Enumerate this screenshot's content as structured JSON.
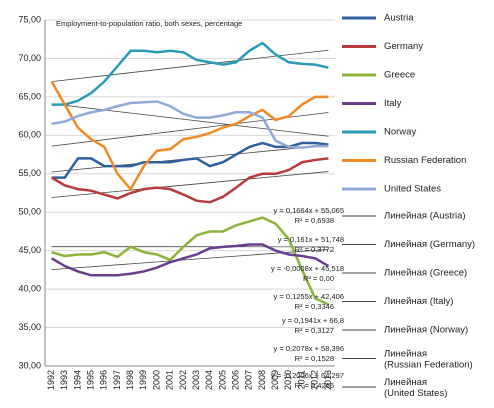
{
  "chart_data": {
    "type": "line",
    "title": "Employment-to-population ratio, both sexes, percentage",
    "categories": [
      "1992",
      "1993",
      "1994",
      "1995",
      "1996",
      "1997",
      "1998",
      "1999",
      "2000",
      "2001",
      "2002",
      "2003",
      "2004",
      "2005",
      "2006",
      "2007",
      "2008",
      "2009",
      "2010",
      "2011",
      "2012",
      "2013"
    ],
    "ylim": [
      30,
      75
    ],
    "yticks": [
      {
        "value": 30,
        "label": "30,00"
      },
      {
        "value": 35,
        "label": "35,00"
      },
      {
        "value": 40,
        "label": "40,00"
      },
      {
        "value": 45,
        "label": "45,00"
      },
      {
        "value": 50,
        "label": "50,00"
      },
      {
        "value": 55,
        "label": "55,00"
      },
      {
        "value": 60,
        "label": "60,00"
      },
      {
        "value": 65,
        "label": "65,00"
      },
      {
        "value": 70,
        "label": "70,00"
      },
      {
        "value": 75,
        "label": "75,00"
      }
    ],
    "grid": true,
    "series": [
      {
        "name": "Austria",
        "color": "#2e5f9e",
        "values": [
          54.5,
          54.5,
          57,
          57,
          56,
          56,
          56,
          56.5,
          56.5,
          56.5,
          56.8,
          57,
          56,
          56.5,
          57.5,
          58.5,
          59,
          58.5,
          58.5,
          59,
          59,
          58.8
        ]
      },
      {
        "name": "Germany",
        "color": "#b83a3a",
        "values": [
          54.5,
          53.5,
          53,
          52.8,
          52.3,
          51.8,
          52.5,
          53,
          53.2,
          53,
          52.3,
          51.5,
          51.3,
          52,
          53.2,
          54.5,
          55,
          55,
          55.5,
          56.5,
          56.8,
          57
        ]
      },
      {
        "name": "Greece",
        "color": "#8db33a",
        "values": [
          44.8,
          44.3,
          44.5,
          44.5,
          44.8,
          44.2,
          45.5,
          44.8,
          44.5,
          43.8,
          45.5,
          47,
          47.5,
          47.5,
          48.3,
          48.8,
          49.3,
          48.5,
          46.5,
          42.5,
          38.8,
          38
        ]
      },
      {
        "name": "Italy",
        "color": "#6a3d8f",
        "values": [
          44,
          43,
          42.3,
          41.8,
          41.8,
          41.8,
          42,
          42.3,
          42.8,
          43.5,
          44,
          44.5,
          45.3,
          45.5,
          45.6,
          45.8,
          45.8,
          45,
          44.5,
          44.3,
          44,
          43
        ]
      },
      {
        "name": "Norway",
        "color": "#2a9bb8",
        "values": [
          64,
          64,
          64.5,
          65.5,
          67,
          69,
          71,
          71,
          70.8,
          71,
          70.8,
          69.8,
          69.5,
          69.2,
          69.5,
          71,
          72,
          70.5,
          69.5,
          69.3,
          69.2,
          68.8
        ]
      },
      {
        "name": "Russian Federation",
        "color": "#f08a24",
        "values": [
          67,
          64,
          61,
          59.5,
          58.5,
          55,
          53,
          56,
          58,
          58.2,
          59.5,
          59.8,
          60.3,
          61,
          61.5,
          62.5,
          63.3,
          62,
          62.5,
          64,
          65,
          65
        ]
      },
      {
        "name": "United States",
        "color": "#8fa9d8",
        "values": [
          61.5,
          61.8,
          62.5,
          63,
          63.3,
          63.8,
          64.2,
          64.3,
          64.4,
          63.8,
          62.8,
          62.3,
          62.3,
          62.6,
          63,
          63,
          62.3,
          59.3,
          58.5,
          58.4,
          58.6,
          58.6
        ]
      }
    ],
    "trendlines": [
      {
        "name": "Линейная (Austria)",
        "color": "#444444",
        "values": [
          55.23,
          58.73
        ],
        "equation": "y = 0,1664x + 55,065",
        "r2": "R² = 0,6938"
      },
      {
        "name": "Линейная (Germany)",
        "color": "#444444",
        "values": [
          51.91,
          55.29
        ],
        "equation": "y = 0,161x + 51,748",
        "r2": "R² = 0,3772"
      },
      {
        "name": "Линейная (Greece)",
        "color": "#444444",
        "values": [
          45.52,
          45.5
        ],
        "equation": "y = -0,0008x + 45,518",
        "r2": "R² = 0,00"
      },
      {
        "name": "Линейная (Italy)",
        "color": "#444444",
        "values": [
          42.53,
          45.17
        ],
        "equation": "y = 0,1255x + 42,406",
        "r2": "R² = 0,3346"
      },
      {
        "name": "Линейная (Norway)",
        "color": "#444444",
        "values": [
          66.99,
          71.07
        ],
        "equation": "y = 0,1941x + 66,8",
        "r2": "R² = 0,3127"
      },
      {
        "name": "Линейная (Russian Federation)",
        "color": "#444444",
        "values": [
          58.6,
          62.97
        ],
        "equation": "y = 0,2078x + 58,396",
        "r2": "R² = 0,1528"
      },
      {
        "name": "Линейная (United States)",
        "color": "#444444",
        "values": [
          64.1,
          59.88
        ],
        "equation": "y = -0,2006x + 64,297",
        "r2": "R² = 0,4266"
      }
    ]
  }
}
